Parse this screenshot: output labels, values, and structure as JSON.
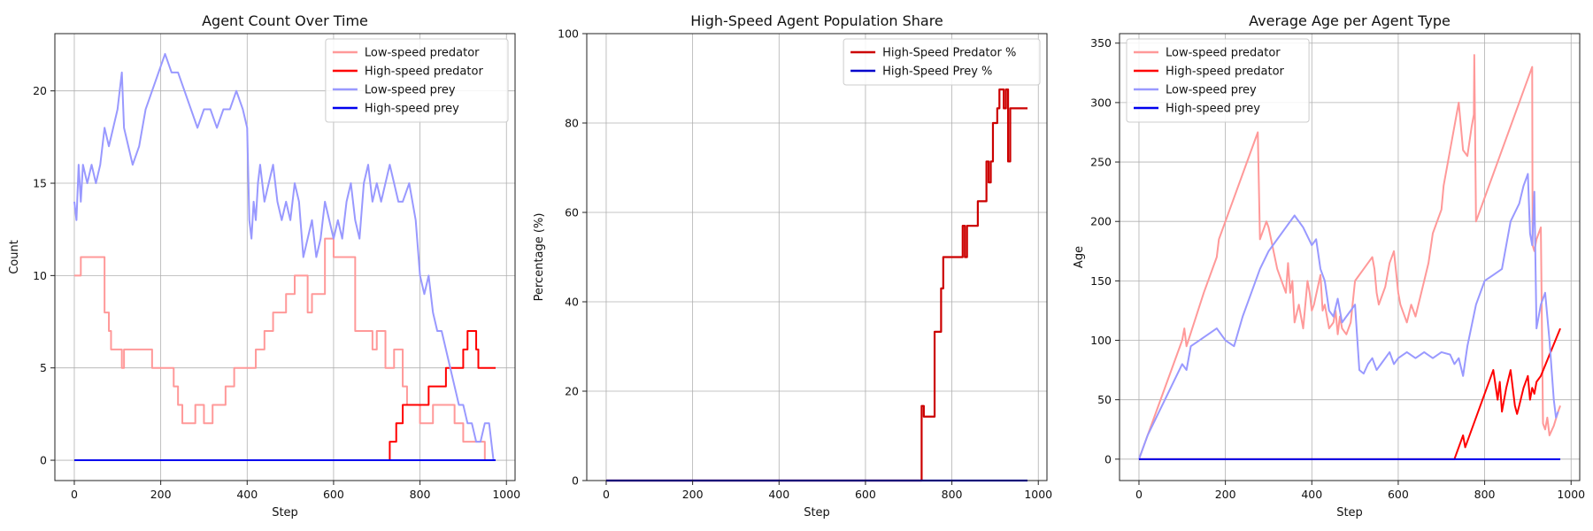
{
  "chart_data": [
    {
      "type": "line",
      "title": "Agent Count Over Time",
      "xlabel": "Step",
      "ylabel": "Count",
      "xlim": [
        -45,
        1020
      ],
      "ylim": [
        -1.1,
        23.1
      ],
      "xticks": [
        0,
        200,
        400,
        600,
        800,
        1000
      ],
      "yticks": [
        0,
        5,
        10,
        15,
        20
      ],
      "grid": true,
      "legend": "top-right",
      "series": [
        {
          "name": "Low-speed predator",
          "color": "#ff9999",
          "width": 2,
          "x": [
            0,
            15,
            15,
            70,
            70,
            80,
            80,
            85,
            85,
            90,
            90,
            110,
            110,
            115,
            115,
            180,
            180,
            220,
            220,
            230,
            230,
            240,
            240,
            250,
            250,
            280,
            280,
            300,
            300,
            320,
            320,
            350,
            350,
            370,
            370,
            420,
            420,
            440,
            440,
            460,
            460,
            490,
            490,
            510,
            510,
            540,
            540,
            550,
            550,
            580,
            580,
            600,
            600,
            650,
            650,
            690,
            690,
            700,
            700,
            720,
            720,
            740,
            740,
            760,
            760,
            770,
            770,
            800,
            800,
            830,
            830,
            880,
            880,
            900,
            900,
            950,
            950,
            975
          ],
          "y": [
            10,
            10,
            11,
            11,
            8,
            8,
            7,
            7,
            6,
            6,
            6,
            6,
            5,
            5,
            6,
            6,
            5,
            5,
            5,
            5,
            4,
            4,
            3,
            3,
            2,
            2,
            3,
            3,
            2,
            2,
            3,
            3,
            4,
            4,
            5,
            5,
            6,
            6,
            7,
            7,
            8,
            8,
            9,
            9,
            10,
            10,
            8,
            8,
            9,
            9,
            12,
            12,
            11,
            11,
            7,
            7,
            6,
            6,
            7,
            7,
            5,
            5,
            6,
            6,
            4,
            4,
            3,
            3,
            2,
            2,
            3,
            3,
            2,
            2,
            1,
            1,
            0,
            0
          ]
        },
        {
          "name": "High-speed predator",
          "color": "#ff0000",
          "width": 2,
          "x": [
            0,
            730,
            730,
            745,
            745,
            760,
            760,
            820,
            820,
            835,
            835,
            860,
            860,
            880,
            880,
            900,
            900,
            910,
            910,
            930,
            930,
            935,
            935,
            975
          ],
          "y": [
            0,
            0,
            1,
            1,
            2,
            2,
            3,
            3,
            4,
            4,
            4,
            4,
            5,
            5,
            5,
            5,
            6,
            6,
            7,
            7,
            6,
            6,
            5,
            5
          ]
        },
        {
          "name": "Low-speed prey",
          "color": "#9999ff",
          "width": 2,
          "x": [
            0,
            5,
            10,
            15,
            20,
            30,
            40,
            50,
            60,
            70,
            80,
            90,
            100,
            105,
            110,
            115,
            125,
            135,
            150,
            165,
            180,
            195,
            210,
            225,
            240,
            255,
            270,
            285,
            300,
            315,
            330,
            345,
            360,
            375,
            390,
            400,
            405,
            410,
            415,
            420,
            425,
            430,
            440,
            450,
            460,
            470,
            480,
            490,
            500,
            510,
            520,
            530,
            540,
            550,
            560,
            570,
            580,
            590,
            600,
            610,
            620,
            630,
            640,
            650,
            660,
            670,
            680,
            690,
            700,
            710,
            720,
            730,
            740,
            750,
            760,
            775,
            790,
            800,
            810,
            820,
            830,
            840,
            850,
            860,
            870,
            880,
            890,
            900,
            910,
            920,
            930,
            940,
            950,
            960,
            970
          ],
          "y": [
            14,
            13,
            16,
            14,
            16,
            15,
            16,
            15,
            16,
            18,
            17,
            18,
            19,
            20,
            21,
            18,
            17,
            16,
            17,
            19,
            20,
            21,
            22,
            21,
            21,
            20,
            19,
            18,
            19,
            19,
            18,
            19,
            19,
            20,
            19,
            18,
            13,
            12,
            14,
            13,
            15,
            16,
            14,
            15,
            16,
            14,
            13,
            14,
            13,
            15,
            14,
            11,
            12,
            13,
            11,
            12,
            14,
            13,
            12,
            13,
            12,
            14,
            15,
            13,
            12,
            15,
            16,
            14,
            15,
            14,
            15,
            16,
            15,
            14,
            14,
            15,
            13,
            10,
            9,
            10,
            8,
            7,
            7,
            6,
            5,
            4,
            3,
            3,
            2,
            2,
            1,
            1,
            2,
            2,
            0
          ]
        },
        {
          "name": "High-speed prey",
          "color": "#0000ee",
          "width": 2,
          "x": [
            0,
            975
          ],
          "y": [
            0,
            0
          ]
        }
      ]
    },
    {
      "type": "line",
      "title": "High-Speed Agent Population Share",
      "xlabel": "Step",
      "ylabel": "Percentage (%)",
      "xlim": [
        -45,
        1020
      ],
      "ylim": [
        0,
        100
      ],
      "xticks": [
        0,
        200,
        400,
        600,
        800,
        1000
      ],
      "yticks": [
        0,
        20,
        40,
        60,
        80,
        100
      ],
      "grid": true,
      "legend": "top-right",
      "series": [
        {
          "name": "High-Speed Predator %",
          "color": "#cc0000",
          "width": 2.2,
          "x": [
            0,
            730,
            730,
            735,
            735,
            750,
            750,
            760,
            760,
            770,
            770,
            775,
            775,
            780,
            780,
            820,
            820,
            825,
            825,
            830,
            830,
            835,
            835,
            840,
            840,
            850,
            850,
            860,
            860,
            870,
            870,
            880,
            880,
            885,
            885,
            890,
            890,
            895,
            895,
            905,
            905,
            910,
            910,
            915,
            915,
            920,
            920,
            925,
            925,
            930,
            930,
            935,
            935,
            945,
            945,
            950,
            950,
            975
          ],
          "y": [
            0,
            0,
            16.7,
            16.7,
            14.3,
            14.3,
            14.3,
            14.3,
            33.3,
            33.3,
            33.3,
            33.3,
            43,
            43,
            50,
            50,
            50,
            50,
            57,
            57,
            50,
            50,
            57,
            57,
            57,
            57,
            57,
            57,
            62.5,
            62.5,
            62.5,
            62.5,
            71.4,
            71.4,
            66.7,
            66.7,
            71.4,
            71.4,
            80,
            80,
            83.3,
            83.3,
            87.5,
            87.5,
            87.5,
            87.5,
            83.3,
            83.3,
            87.5,
            87.5,
            71.4,
            71.4,
            83.3,
            83.3,
            83.3,
            83.3,
            83.3,
            83.3
          ]
        },
        {
          "name": "High-Speed Prey %",
          "color": "#0000cc",
          "width": 2.2,
          "x": [
            0,
            975
          ],
          "y": [
            0,
            0
          ]
        }
      ]
    },
    {
      "type": "line",
      "title": "Average Age per Agent Type",
      "xlabel": "Step",
      "ylabel": "Age",
      "xlim": [
        -45,
        1020
      ],
      "ylim": [
        -18,
        358
      ],
      "xticks": [
        0,
        200,
        400,
        600,
        800,
        1000
      ],
      "yticks": [
        0,
        50,
        100,
        150,
        200,
        250,
        300,
        350
      ],
      "grid": true,
      "legend": "top-left",
      "series": [
        {
          "name": "Low-speed predator",
          "color": "#ff9999",
          "width": 2,
          "x": [
            0,
            80,
            100,
            105,
            110,
            150,
            180,
            185,
            210,
            240,
            275,
            280,
            290,
            295,
            300,
            320,
            340,
            345,
            350,
            355,
            360,
            370,
            380,
            390,
            395,
            400,
            405,
            420,
            425,
            430,
            440,
            450,
            455,
            460,
            465,
            470,
            480,
            490,
            500,
            510,
            520,
            530,
            540,
            545,
            550,
            555,
            560,
            570,
            580,
            590,
            600,
            605,
            610,
            620,
            630,
            640,
            650,
            660,
            670,
            680,
            690,
            700,
            705,
            710,
            720,
            730,
            740,
            750,
            760,
            770,
            775,
            776,
            780,
            790,
            800,
            810,
            820,
            830,
            840,
            850,
            860,
            870,
            880,
            890,
            900,
            910,
            911,
            915,
            920,
            930,
            935,
            940,
            945,
            950,
            960,
            970,
            975
          ],
          "y": [
            0,
            80,
            100,
            110,
            95,
            140,
            170,
            185,
            210,
            240,
            275,
            185,
            195,
            200,
            195,
            160,
            140,
            165,
            140,
            150,
            115,
            130,
            110,
            150,
            140,
            125,
            130,
            155,
            125,
            130,
            110,
            115,
            125,
            105,
            120,
            110,
            105,
            115,
            150,
            155,
            160,
            165,
            170,
            160,
            140,
            130,
            135,
            145,
            165,
            175,
            140,
            130,
            125,
            115,
            130,
            120,
            135,
            150,
            165,
            190,
            200,
            210,
            230,
            240,
            260,
            280,
            300,
            260,
            255,
            280,
            290,
            340,
            200,
            210,
            220,
            230,
            240,
            250,
            260,
            270,
            280,
            290,
            300,
            310,
            320,
            330,
            180,
            175,
            185,
            195,
            30,
            25,
            35,
            20,
            28,
            40,
            45
          ]
        },
        {
          "name": "High-speed predator",
          "color": "#ff0000",
          "width": 2,
          "x": [
            0,
            730,
            750,
            755,
            760,
            780,
            820,
            830,
            835,
            840,
            850,
            860,
            870,
            875,
            880,
            890,
            900,
            905,
            910,
            915,
            920,
            930,
            975
          ],
          "y": [
            0,
            0,
            20,
            10,
            15,
            35,
            75,
            50,
            65,
            40,
            60,
            75,
            45,
            38,
            45,
            60,
            70,
            50,
            60,
            55,
            65,
            70,
            110
          ]
        },
        {
          "name": "Low-speed prey",
          "color": "#9999ff",
          "width": 2,
          "x": [
            0,
            20,
            40,
            60,
            80,
            100,
            110,
            120,
            140,
            160,
            180,
            200,
            220,
            240,
            260,
            280,
            300,
            320,
            340,
            360,
            380,
            400,
            410,
            420,
            430,
            440,
            450,
            460,
            470,
            480,
            490,
            500,
            510,
            520,
            530,
            540,
            550,
            560,
            570,
            580,
            590,
            600,
            620,
            640,
            660,
            680,
            700,
            720,
            730,
            740,
            750,
            760,
            780,
            800,
            820,
            840,
            860,
            880,
            890,
            900,
            905,
            910,
            915,
            920,
            925,
            930,
            940,
            950,
            960,
            965,
            970
          ],
          "y": [
            0,
            20,
            35,
            50,
            65,
            80,
            75,
            95,
            100,
            105,
            110,
            100,
            95,
            120,
            140,
            160,
            175,
            185,
            195,
            205,
            195,
            180,
            185,
            160,
            150,
            125,
            120,
            135,
            115,
            120,
            125,
            130,
            75,
            72,
            80,
            85,
            75,
            80,
            85,
            90,
            80,
            85,
            90,
            85,
            90,
            85,
            90,
            88,
            80,
            85,
            70,
            95,
            130,
            150,
            155,
            160,
            200,
            215,
            230,
            240,
            190,
            180,
            225,
            110,
            120,
            130,
            140,
            100,
            50,
            35,
            40
          ]
        },
        {
          "name": "High-speed prey",
          "color": "#0000ee",
          "width": 2,
          "x": [
            0,
            975
          ],
          "y": [
            0,
            0
          ]
        }
      ]
    }
  ]
}
